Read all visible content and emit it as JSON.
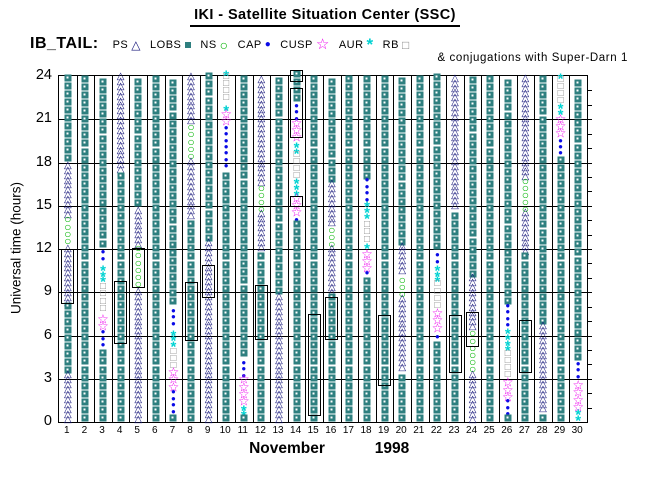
{
  "header": {
    "title": "IKI - Satellite Situation Center (SSC)",
    "note": "& conjugations with Super-Darn 1"
  },
  "legend": {
    "title": "IB_TAIL:",
    "items": [
      {
        "label": "PS",
        "sym": "PS"
      },
      {
        "label": "LOBS",
        "sym": "LOBS"
      },
      {
        "label": "NS",
        "sym": "NS"
      },
      {
        "label": "CAP",
        "sym": "CAP"
      },
      {
        "label": "CUSP",
        "sym": "CUSP"
      },
      {
        "label": "AUR",
        "sym": "AUR"
      },
      {
        "label": "RB",
        "sym": "RB"
      }
    ]
  },
  "chart_data": {
    "type": "scatter",
    "title": "IKI - Satellite Situation Center (SSC)",
    "note": "& conjugations with Super-Darn 1",
    "xlabel_month": "November",
    "xlabel_year": "1998",
    "ylabel": "Universal time (hours)",
    "ylim": [
      0,
      24
    ],
    "y_ticks": [
      0,
      3,
      6,
      9,
      12,
      15,
      18,
      21,
      24
    ],
    "grid_hours": [
      3,
      6,
      9,
      12,
      15,
      18,
      21
    ],
    "x_ticks": [
      1,
      2,
      3,
      4,
      5,
      6,
      7,
      8,
      9,
      10,
      11,
      12,
      13,
      14,
      15,
      16,
      17,
      18,
      19,
      20,
      21,
      22,
      23,
      24,
      25,
      26,
      27,
      28,
      29,
      30
    ],
    "symbol_defs": {
      "PS": {
        "icon": "triangle-open",
        "glyph": "△",
        "color": "#14147a",
        "size": 10,
        "step": 0.34,
        "bold": false,
        "dy": 0
      },
      "LOBS": {
        "icon": "square-filled",
        "glyph": "square",
        "color": "#2e7f7f",
        "size": 7,
        "step": 0.56,
        "bold": false,
        "dy": 0
      },
      "NS": {
        "icon": "circle-open",
        "glyph": "○",
        "color": "#00b400",
        "size": 12,
        "step": 0.5,
        "bold": true,
        "dy": 0
      },
      "CAP": {
        "icon": "circle-filled",
        "glyph": "●",
        "color": "#0a0ae6",
        "size": 8,
        "step": 0.45,
        "bold": false,
        "dy": 0
      },
      "CUSP": {
        "icon": "star-open",
        "glyph": "☆",
        "color": "#ee00ee",
        "size": 13,
        "step": 0.5,
        "bold": true,
        "dy": 0
      },
      "AUR": {
        "icon": "asterisk",
        "glyph": "*",
        "color": "#00d2d2",
        "size": 15,
        "step": 0.4,
        "bold": true,
        "dy": 3
      },
      "RB": {
        "icon": "square-open",
        "glyph": "□",
        "color": "#8c8c8c",
        "size": 10,
        "step": 0.5,
        "bold": false,
        "dy": 0
      }
    },
    "days": [
      {
        "d": 1,
        "seg": [
          [
            "LOBS",
            18,
            24
          ],
          [
            "PS",
            14.2,
            18
          ],
          [
            "NS",
            12.3,
            14.1
          ],
          [
            "PS",
            8.1,
            12.3
          ],
          [
            "LOBS",
            3.3,
            8.1
          ],
          [
            "PS",
            0,
            3.3
          ]
        ]
      },
      {
        "d": 2,
        "seg": [
          [
            "LOBS",
            0,
            24
          ]
        ]
      },
      {
        "d": 3,
        "seg": [
          [
            "LOBS",
            12.1,
            24
          ],
          [
            "CAP",
            11.1,
            12.1
          ],
          [
            "AUR",
            9.7,
            11.1
          ],
          [
            "RB",
            7.6,
            9.7
          ],
          [
            "CUSP",
            6.4,
            7.6
          ],
          [
            "CAP",
            5.1,
            6.4
          ],
          [
            "LOBS",
            0,
            5.1
          ]
        ]
      },
      {
        "d": 4,
        "seg": [
          [
            "PS",
            17.3,
            24
          ],
          [
            "LOBS",
            0,
            17.3
          ]
        ]
      },
      {
        "d": 5,
        "seg": [
          [
            "LOBS",
            14.9,
            24
          ],
          [
            "PS",
            12.1,
            14.9
          ],
          [
            "NS",
            9.3,
            12.1
          ],
          [
            "PS",
            0,
            9.3
          ]
        ]
      },
      {
        "d": 6,
        "seg": [
          [
            "LOBS",
            0,
            24
          ]
        ]
      },
      {
        "d": 7,
        "seg": [
          [
            "LOBS",
            8.1,
            24
          ],
          [
            "CAP",
            6.6,
            8.1
          ],
          [
            "AUR",
            5.2,
            6.6
          ],
          [
            "RB",
            3.6,
            5.2
          ],
          [
            "CUSP",
            2.2,
            3.6
          ],
          [
            "CAP",
            0.5,
            2.2
          ],
          [
            "LOBS",
            0,
            0.5
          ]
        ]
      },
      {
        "d": 8,
        "seg": [
          [
            "PS",
            20.7,
            24
          ],
          [
            "NS",
            18.2,
            20.7
          ],
          [
            "PS",
            14.1,
            18.2
          ],
          [
            "LOBS",
            0,
            14.1
          ]
        ]
      },
      {
        "d": 9,
        "seg": [
          [
            "LOBS",
            12.5,
            24
          ],
          [
            "PS",
            0,
            12.5
          ]
        ]
      },
      {
        "d": 10,
        "seg": [
          [
            "AUR",
            24,
            24.4
          ],
          [
            "RB",
            22.2,
            24
          ],
          [
            "AUR",
            21.6,
            22.2
          ],
          [
            "CUSP",
            20.6,
            21.6
          ],
          [
            "CAP",
            17.5,
            20.6
          ],
          [
            "LOBS",
            0,
            17.5
          ]
        ]
      },
      {
        "d": 11,
        "seg": [
          [
            "LOBS",
            4.5,
            24
          ],
          [
            "CAP",
            3.0,
            4.5
          ],
          [
            "CUSP",
            1.2,
            3.0
          ],
          [
            "AUR",
            0.4,
            1.2
          ],
          [
            "LOBS",
            0,
            0.4
          ]
        ]
      },
      {
        "d": 12,
        "seg": [
          [
            "PS",
            16.4,
            24
          ],
          [
            "NS",
            14.5,
            16.4
          ],
          [
            "PS",
            11.9,
            14.5
          ],
          [
            "LOBS",
            0,
            11.9
          ]
        ]
      },
      {
        "d": 13,
        "seg": [
          [
            "LOBS",
            8.8,
            24
          ],
          [
            "PS",
            0,
            8.8
          ]
        ]
      },
      {
        "d": 14,
        "seg": [
          [
            "LOBS",
            22.2,
            24.2
          ],
          [
            "CAP",
            20.8,
            22.2
          ],
          [
            "CUSP",
            19.5,
            20.8
          ],
          [
            "AUR",
            18.6,
            19.5
          ],
          [
            "RB",
            16.8,
            18.6
          ],
          [
            "AUR",
            15.7,
            16.8
          ],
          [
            "CUSP",
            14.3,
            15.7
          ],
          [
            "CAP",
            13.8,
            14.3
          ],
          [
            "LOBS",
            0,
            13.8
          ]
        ]
      },
      {
        "d": 15,
        "seg": [
          [
            "LOBS",
            0,
            24
          ]
        ]
      },
      {
        "d": 16,
        "seg": [
          [
            "LOBS",
            16.6,
            24
          ],
          [
            "PS",
            13.6,
            16.6
          ],
          [
            "NS",
            12.1,
            13.6
          ],
          [
            "PS",
            8.8,
            12.1
          ],
          [
            "LOBS",
            0,
            8.8
          ]
        ]
      },
      {
        "d": 17,
        "seg": [
          [
            "LOBS",
            0,
            24
          ]
        ]
      },
      {
        "d": 18,
        "seg": [
          [
            "LOBS",
            16.8,
            24
          ],
          [
            "CAP",
            15.2,
            16.8
          ],
          [
            "AUR",
            14.1,
            15.2
          ],
          [
            "RB",
            12.4,
            14.1
          ],
          [
            "AUR",
            12.0,
            12.4
          ],
          [
            "CUSP",
            10.4,
            12.0
          ],
          [
            "CAP",
            10.1,
            10.4
          ],
          [
            "LOBS",
            0,
            10.1
          ]
        ]
      },
      {
        "d": 19,
        "seg": [
          [
            "LOBS",
            0,
            24
          ]
        ]
      },
      {
        "d": 20,
        "seg": [
          [
            "LOBS",
            12.2,
            24
          ],
          [
            "PS",
            10.3,
            12.2
          ],
          [
            "NS",
            8.6,
            10.3
          ],
          [
            "PS",
            3.6,
            8.6
          ],
          [
            "LOBS",
            0,
            3.6
          ]
        ]
      },
      {
        "d": 21,
        "seg": [
          [
            "LOBS",
            0,
            24
          ]
        ]
      },
      {
        "d": 22,
        "seg": [
          [
            "LOBS",
            11.9,
            24
          ],
          [
            "CAP",
            10.9,
            11.9
          ],
          [
            "AUR",
            9.7,
            10.9
          ],
          [
            "RB",
            7.8,
            9.7
          ],
          [
            "CUSP",
            6.3,
            7.8
          ],
          [
            "CAP",
            5.7,
            6.3
          ],
          [
            "LOBS",
            0,
            5.7
          ]
        ]
      },
      {
        "d": 23,
        "seg": [
          [
            "PS",
            14.8,
            24
          ],
          [
            "LOBS",
            0,
            14.8
          ]
        ]
      },
      {
        "d": 24,
        "seg": [
          [
            "LOBS",
            10.0,
            24
          ],
          [
            "PS",
            6.4,
            10.0
          ],
          [
            "NS",
            3.4,
            6.4
          ],
          [
            "PS",
            0,
            3.4
          ]
        ]
      },
      {
        "d": 25,
        "seg": [
          [
            "LOBS",
            0,
            24
          ]
        ]
      },
      {
        "d": 26,
        "seg": [
          [
            "LOBS",
            8.1,
            24
          ],
          [
            "CAP",
            6.5,
            8.1
          ],
          [
            "AUR",
            4.9,
            6.5
          ],
          [
            "RB",
            3.0,
            4.9
          ],
          [
            "CUSP",
            1.5,
            3.0
          ],
          [
            "CAP",
            0.3,
            1.5
          ],
          [
            "LOBS",
            0,
            0.3
          ]
        ]
      },
      {
        "d": 27,
        "seg": [
          [
            "PS",
            16.8,
            24
          ],
          [
            "NS",
            14.5,
            16.8
          ],
          [
            "PS",
            11.6,
            14.5
          ],
          [
            "LOBS",
            0,
            11.6
          ]
        ]
      },
      {
        "d": 28,
        "seg": [
          [
            "LOBS",
            6.7,
            24
          ],
          [
            "PS",
            0.7,
            6.7
          ],
          [
            "LOBS",
            0,
            0.7
          ]
        ]
      },
      {
        "d": 29,
        "seg": [
          [
            "AUR",
            23.8,
            24.4
          ],
          [
            "RB",
            22.0,
            23.8
          ],
          [
            "AUR",
            21.3,
            22.0
          ],
          [
            "CUSP",
            19.8,
            21.3
          ],
          [
            "CAP",
            18.4,
            19.8
          ],
          [
            "LOBS",
            0,
            18.4
          ]
        ]
      },
      {
        "d": 30,
        "seg": [
          [
            "LOBS",
            4.2,
            24
          ],
          [
            "CAP",
            2.9,
            4.2
          ],
          [
            "CUSP",
            0.8,
            2.9
          ],
          [
            "AUR",
            0.1,
            0.8
          ]
        ]
      }
    ],
    "conjunction_boxes": [
      [
        1,
        8.2,
        12.0
      ],
      [
        4,
        5.4,
        9.8
      ],
      [
        5,
        9.3,
        12.1
      ],
      [
        8,
        5.6,
        9.7
      ],
      [
        9,
        8.6,
        10.9
      ],
      [
        12,
        5.7,
        9.5
      ],
      [
        14,
        23.6,
        24.4
      ],
      [
        14,
        19.7,
        23.2
      ],
      [
        14,
        14.9,
        15.7
      ],
      [
        15,
        0.4,
        7.5
      ],
      [
        16,
        5.7,
        8.7
      ],
      [
        19,
        2.5,
        7.4
      ],
      [
        23,
        3.4,
        7.4
      ],
      [
        24,
        5.2,
        7.6
      ],
      [
        27,
        3.4,
        7.1
      ]
    ]
  }
}
